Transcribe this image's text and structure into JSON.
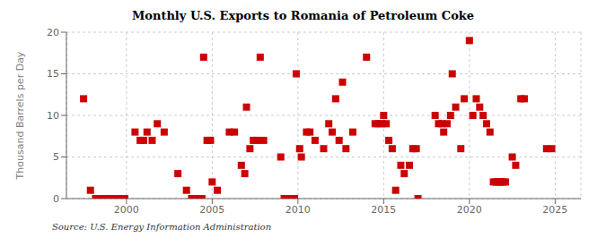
{
  "chart_data": {
    "type": "scatter",
    "title": "Monthly U.S. Exports to Romania of Petroleum Coke",
    "y_label": "Thousand Barrels per Day",
    "annotations": [
      "Source: U.S. Energy Information Administration"
    ],
    "color": "#cc0000",
    "marker": "square",
    "grid": true,
    "xlim": [
      1996.5,
      2026.5
    ],
    "xticks": [
      2000,
      2005,
      2010,
      2015,
      2020,
      2025
    ],
    "ylim": [
      0,
      20
    ],
    "yticks": [
      0,
      5,
      10,
      15,
      20
    ],
    "x": [
      1997.5,
      1997.9,
      1998.2,
      1998.5,
      1998.8,
      1999.0,
      1999.3,
      1999.6,
      1999.9,
      2000.5,
      2000.8,
      2001.0,
      2001.2,
      2001.5,
      2001.8,
      2002.2,
      2003.0,
      2003.5,
      2003.8,
      2004.0,
      2004.1,
      2004.2,
      2004.3,
      2004.4,
      2004.5,
      2004.7,
      2004.9,
      2005.0,
      2005.3,
      2006.0,
      2006.3,
      2006.7,
      2006.9,
      2007.0,
      2007.2,
      2007.4,
      2007.6,
      2007.8,
      2008.0,
      2009.0,
      2009.2,
      2009.4,
      2009.6,
      2009.8,
      2009.9,
      2010.1,
      2010.2,
      2010.5,
      2010.7,
      2011.0,
      2011.5,
      2011.8,
      2012.0,
      2012.2,
      2012.4,
      2012.6,
      2012.8,
      2013.2,
      2014.0,
      2014.5,
      2014.7,
      2014.9,
      2015.0,
      2015.15,
      2015.3,
      2015.5,
      2015.7,
      2016.0,
      2016.2,
      2016.5,
      2016.7,
      2016.9,
      2017.0,
      2018.0,
      2018.2,
      2018.4,
      2018.5,
      2018.7,
      2018.9,
      2019.0,
      2019.2,
      2019.5,
      2019.7,
      2020.0,
      2020.2,
      2020.4,
      2020.6,
      2020.8,
      2021.0,
      2021.2,
      2021.4,
      2021.55,
      2021.65,
      2021.75,
      2021.85,
      2021.95,
      2022.1,
      2022.5,
      2022.7,
      2023.0,
      2023.2,
      2024.5,
      2024.8
    ],
    "values": [
      12,
      1,
      0,
      0,
      0,
      0,
      0,
      0,
      0,
      8,
      7,
      7,
      8,
      7,
      9,
      8,
      3,
      1,
      0,
      0,
      0,
      0,
      0,
      0,
      17,
      7,
      7,
      2,
      1,
      8,
      8,
      4,
      3,
      11,
      6,
      7,
      7,
      17,
      7,
      5,
      0,
      0,
      0,
      0,
      15,
      6,
      5,
      8,
      8,
      7,
      6,
      9,
      8,
      12,
      7,
      14,
      6,
      8,
      17,
      9,
      9,
      9,
      10,
      9,
      7,
      6,
      1,
      4,
      3,
      4,
      6,
      6,
      0,
      10,
      9,
      9,
      8,
      9,
      10,
      15,
      11,
      6,
      12,
      19,
      10,
      12,
      11,
      10,
      9,
      8,
      2,
      2,
      2,
      2,
      2,
      2,
      2,
      5,
      4,
      12,
      12,
      6,
      6
    ]
  }
}
